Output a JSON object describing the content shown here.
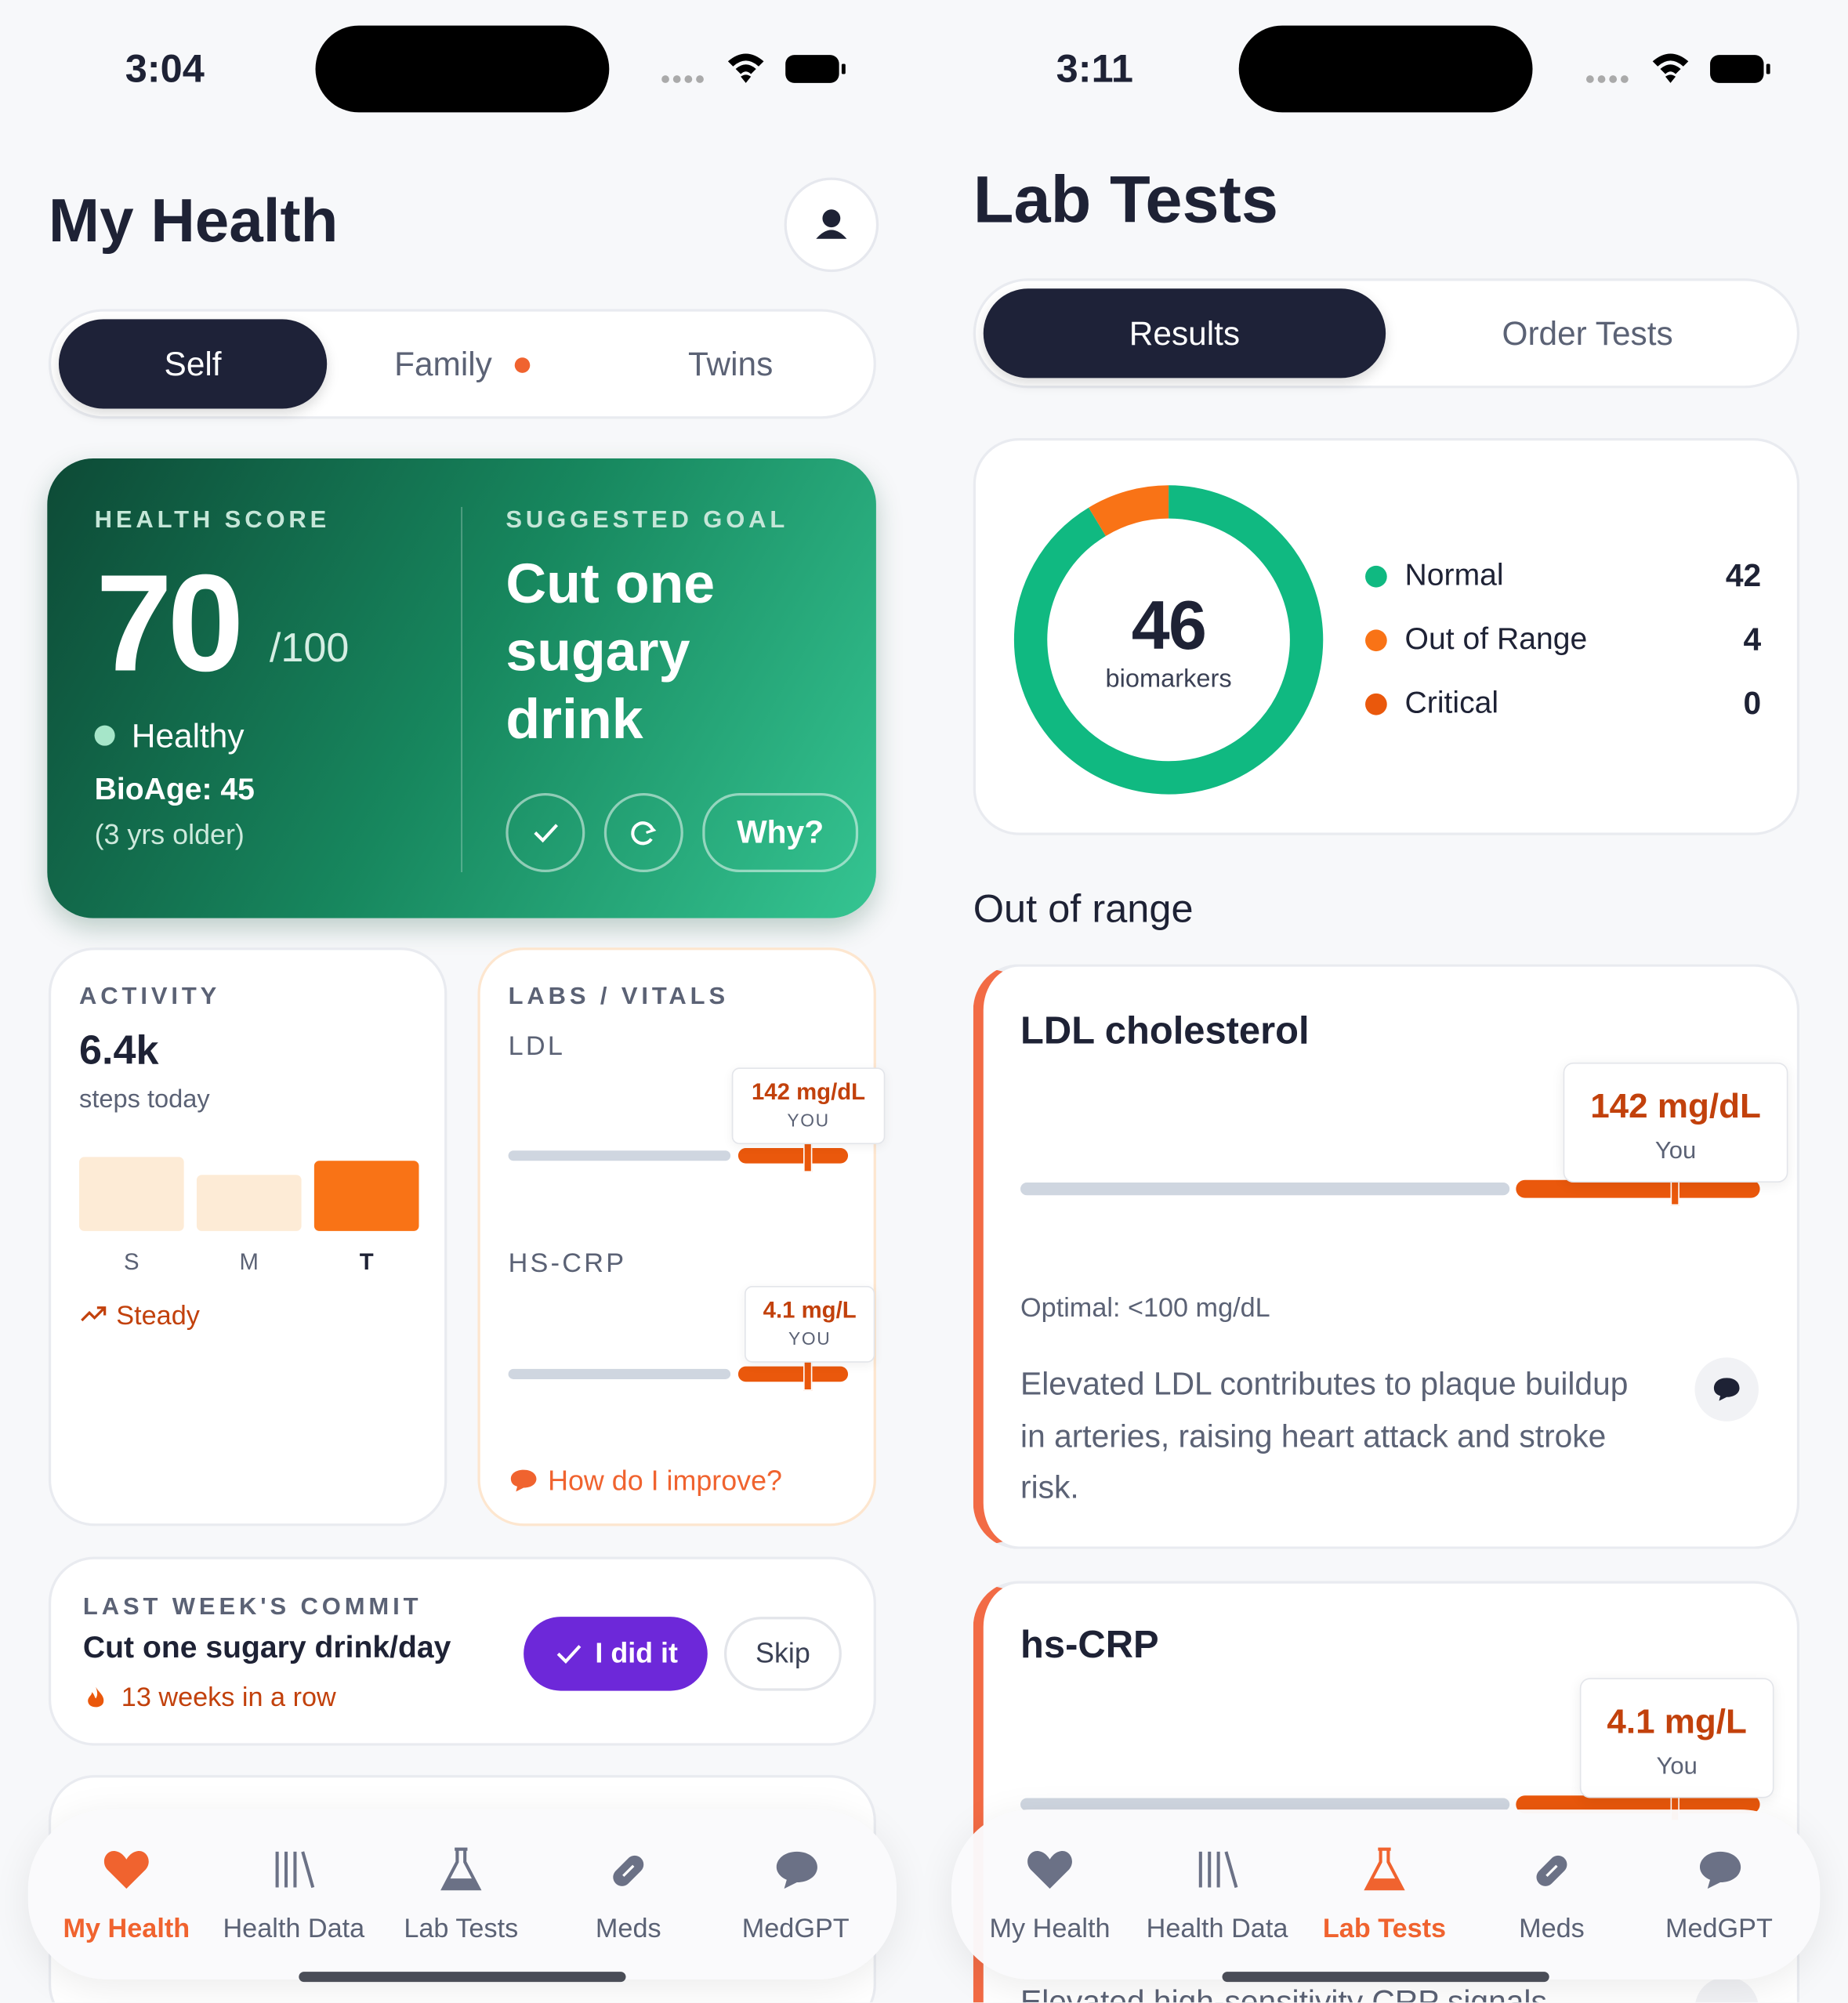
{
  "left": {
    "status_time": "3:04",
    "title": "My Health",
    "tabs": [
      "Self",
      "Family",
      "Twins"
    ],
    "health_score": {
      "label": "HEALTH SCORE",
      "score": 70,
      "max": "/100",
      "status": "Healthy",
      "bio_age": "BioAge: 45",
      "bio_age_note": "(3 yrs older)"
    },
    "goal": {
      "label": "SUGGESTED GOAL",
      "text": "Cut one sugary drink",
      "why": "Why?"
    },
    "activity": {
      "label": "ACTIVITY",
      "value": "6.4k",
      "unit": "steps today",
      "days": [
        "S",
        "M",
        "T"
      ],
      "trend": "Steady"
    },
    "labs": {
      "label": "LABS / VITALS",
      "items": [
        {
          "name": "LDL",
          "value": "142 mg/dL",
          "you": "YOU"
        },
        {
          "name": "HS-CRP",
          "value": "4.1 mg/L",
          "you": "YOU"
        }
      ],
      "link": "How do I improve?"
    },
    "commit": {
      "label": "LAST WEEK'S COMMIT",
      "text": "Cut one sugary drink/day",
      "streak": "13 weeks in a row",
      "done": "I did it",
      "skip": "Skip"
    }
  },
  "right": {
    "status_time": "3:11",
    "title": "Lab Tests",
    "tabs": [
      "Results",
      "Order Tests"
    ],
    "summary": {
      "total": 46,
      "total_label": "biomarkers",
      "groups": [
        {
          "name": "Normal",
          "count": 42,
          "color": "#10b981"
        },
        {
          "name": "Out of Range",
          "count": 4,
          "color": "#f97316"
        },
        {
          "name": "Critical",
          "count": 0,
          "color": "#ea580c"
        }
      ]
    },
    "section": "Out of range",
    "cards": [
      {
        "name": "LDL cholesterol",
        "value": "142 mg/dL",
        "you": "You",
        "optimal": "Optimal: <100 mg/dL",
        "desc": "Elevated LDL contributes to plaque buildup in arteries, raising heart attack and stroke risk."
      },
      {
        "name": "hs-CRP",
        "value": "4.1 mg/L",
        "you": "You",
        "desc": "Elevated high-sensitivity CRP signals"
      }
    ]
  },
  "nav": [
    "My Health",
    "Health Data",
    "Lab Tests",
    "Meds",
    "MedGPT"
  ]
}
